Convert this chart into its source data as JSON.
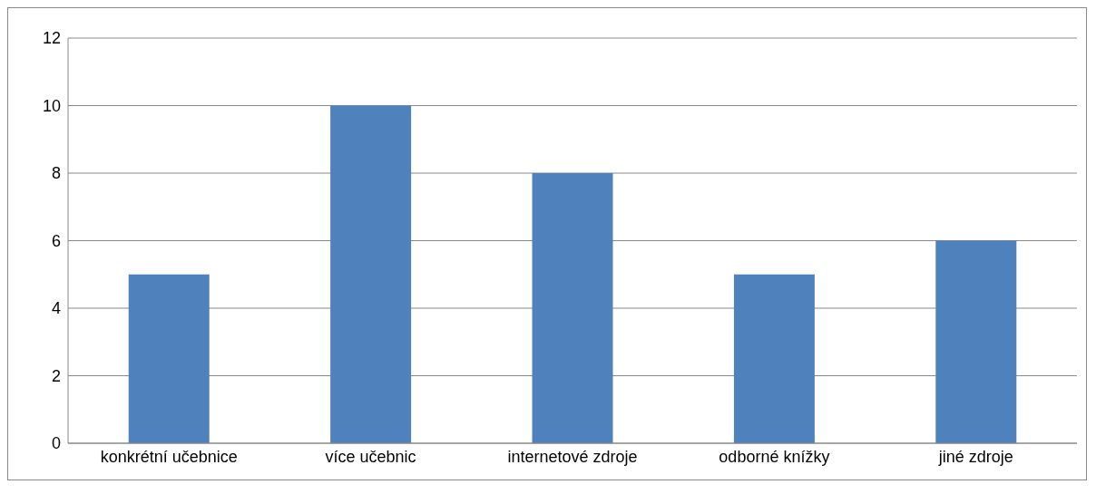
{
  "chart_data": {
    "type": "bar",
    "categories": [
      "konkrétní učebnice",
      "více učebnic",
      "internetové zdroje",
      "odborné knížky",
      "jiné zdroje"
    ],
    "values": [
      5,
      10,
      8,
      5,
      6
    ],
    "color": "#4f81bd",
    "ylim": [
      0,
      12
    ],
    "yticks": [
      0,
      2,
      4,
      6,
      8,
      10,
      12
    ],
    "grid": "y"
  }
}
